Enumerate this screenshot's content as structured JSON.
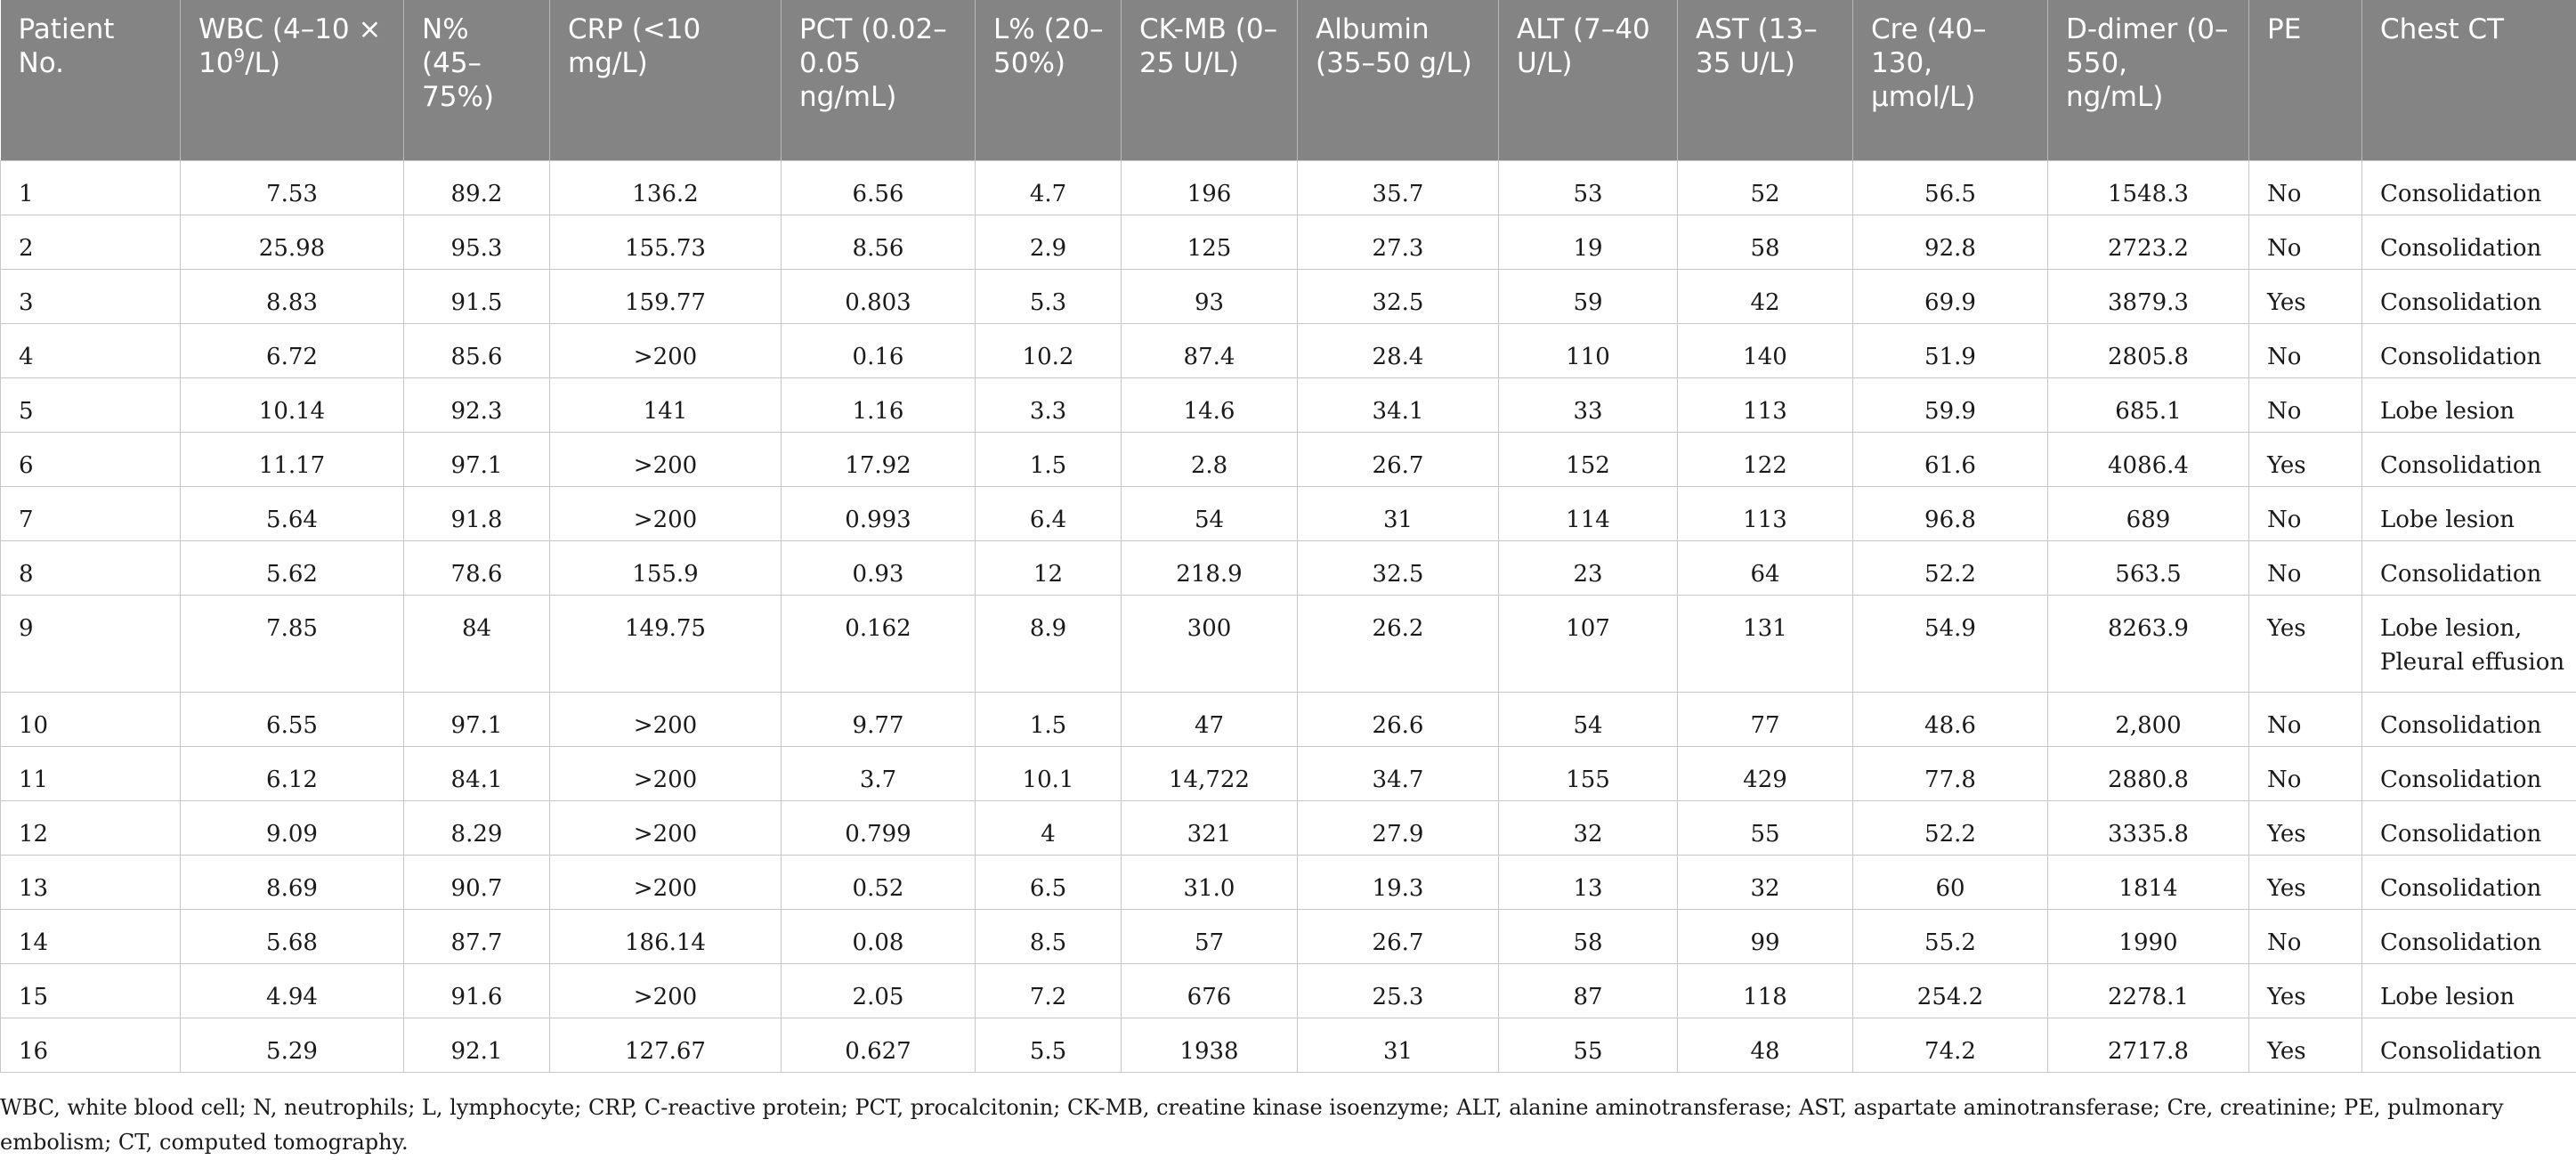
{
  "table": {
    "columns": [
      {
        "key": "patient",
        "label": "Patient No."
      },
      {
        "key": "wbc",
        "label": "WBC (4–10 × 10",
        "sup": "9",
        "label_after": "/L)"
      },
      {
        "key": "n",
        "label": "N% (45–75%)"
      },
      {
        "key": "crp",
        "label": "CRP (<10 mg/L)"
      },
      {
        "key": "pct",
        "label": "PCT (0.02–0.05 ng/mL)"
      },
      {
        "key": "l",
        "label": "L% (20–50%)"
      },
      {
        "key": "ckmb",
        "label": "CK-MB (0–25 U/L)"
      },
      {
        "key": "albumin",
        "label": "Albumin (35–50 g/L)"
      },
      {
        "key": "alt",
        "label": "ALT (7–40 U/L)"
      },
      {
        "key": "ast",
        "label": "AST (13–35 U/L)"
      },
      {
        "key": "cre",
        "label": "Cre (40–130, µmol/L)"
      },
      {
        "key": "ddimer",
        "label": "D-dimer (0–550, ng/mL)"
      },
      {
        "key": "pe",
        "label": "PE"
      },
      {
        "key": "ct",
        "label": "Chest CT"
      }
    ],
    "rows": [
      [
        "1",
        "7.53",
        "89.2",
        "136.2",
        "6.56",
        "4.7",
        "196",
        "35.7",
        "53",
        "52",
        "56.5",
        "1548.3",
        "No",
        "Consolidation"
      ],
      [
        "2",
        "25.98",
        "95.3",
        "155.73",
        "8.56",
        "2.9",
        "125",
        "27.3",
        "19",
        "58",
        "92.8",
        "2723.2",
        "No",
        "Consolidation"
      ],
      [
        "3",
        "8.83",
        "91.5",
        "159.77",
        "0.803",
        "5.3",
        "93",
        "32.5",
        "59",
        "42",
        "69.9",
        "3879.3",
        "Yes",
        "Consolidation"
      ],
      [
        "4",
        "6.72",
        "85.6",
        ">200",
        "0.16",
        "10.2",
        "87.4",
        "28.4",
        "110",
        "140",
        "51.9",
        "2805.8",
        "No",
        "Consolidation"
      ],
      [
        "5",
        "10.14",
        "92.3",
        "141",
        "1.16",
        "3.3",
        "14.6",
        "34.1",
        "33",
        "113",
        "59.9",
        "685.1",
        "No",
        "Lobe lesion"
      ],
      [
        "6",
        "11.17",
        "97.1",
        ">200",
        "17.92",
        "1.5",
        "2.8",
        "26.7",
        "152",
        "122",
        "61.6",
        "4086.4",
        "Yes",
        "Consolidation"
      ],
      [
        "7",
        "5.64",
        "91.8",
        ">200",
        "0.993",
        "6.4",
        "54",
        "31",
        "114",
        "113",
        "96.8",
        "689",
        "No",
        "Lobe lesion"
      ],
      [
        "8",
        "5.62",
        "78.6",
        "155.9",
        "0.93",
        "12",
        "218.9",
        "32.5",
        "23",
        "64",
        "52.2",
        "563.5",
        "No",
        "Consolidation"
      ],
      [
        "9",
        "7.85",
        "84",
        "149.75",
        "0.162",
        "8.9",
        "300",
        "26.2",
        "107",
        "131",
        "54.9",
        "8263.9",
        "Yes",
        "Lobe lesion, Pleural effusion"
      ],
      [
        "10",
        "6.55",
        "97.1",
        ">200",
        "9.77",
        "1.5",
        "47",
        "26.6",
        "54",
        "77",
        "48.6",
        "2,800",
        "No",
        "Consolidation"
      ],
      [
        "11",
        "6.12",
        "84.1",
        ">200",
        "3.7",
        "10.1",
        "14,722",
        "34.7",
        "155",
        "429",
        "77.8",
        "2880.8",
        "No",
        "Consolidation"
      ],
      [
        "12",
        "9.09",
        "8.29",
        ">200",
        "0.799",
        "4",
        "321",
        "27.9",
        "32",
        "55",
        "52.2",
        "3335.8",
        "Yes",
        "Consolidation"
      ],
      [
        "13",
        "8.69",
        "90.7",
        ">200",
        "0.52",
        "6.5",
        "31.0",
        "19.3",
        "13",
        "32",
        "60",
        "1814",
        "Yes",
        "Consolidation"
      ],
      [
        "14",
        "5.68",
        "87.7",
        "186.14",
        "0.08",
        "8.5",
        "57",
        "26.7",
        "58",
        "99",
        "55.2",
        "1990",
        "No",
        "Consolidation"
      ],
      [
        "15",
        "4.94",
        "91.6",
        ">200",
        "2.05",
        "7.2",
        "676",
        "25.3",
        "87",
        "118",
        "254.2",
        "2278.1",
        "Yes",
        "Lobe lesion"
      ],
      [
        "16",
        "5.29",
        "92.1",
        "127.67",
        "0.627",
        "5.5",
        "1938",
        "31",
        "55",
        "48",
        "74.2",
        "2717.8",
        "Yes",
        "Consolidation"
      ]
    ]
  },
  "footnote": "WBC, white blood cell; N, neutrophils; L, lymphocyte; CRP, C-reactive protein; PCT, procalcitonin; CK-MB, creatine kinase isoenzyme; ALT, alanine aminotransferase; AST, aspartate aminotransferase; Cre, creatinine; PE, pulmonary embolism; CT, computed tomography."
}
